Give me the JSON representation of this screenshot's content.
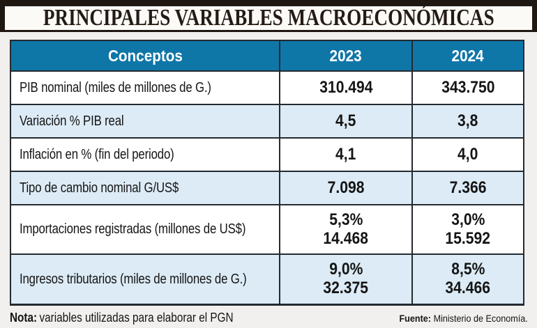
{
  "title": "PRINCIPALES VARIABLES MACROECONÓMICAS",
  "table": {
    "header": {
      "concepts": "Conceptos",
      "y2023": "2023",
      "y2024": "2024"
    },
    "rows": [
      {
        "label": "PIB nominal (miles de millones de G.)",
        "v2023": [
          "310.494"
        ],
        "v2024": [
          "343.750"
        ]
      },
      {
        "label": "Variación % PIB real",
        "v2023": [
          "4,5"
        ],
        "v2024": [
          "3,8"
        ]
      },
      {
        "label": "Inflación en % (fin del periodo)",
        "v2023": [
          "4,1"
        ],
        "v2024": [
          "4,0"
        ]
      },
      {
        "label": "Tipo de cambio nominal G/US$",
        "v2023": [
          "7.098"
        ],
        "v2024": [
          "7.366"
        ]
      },
      {
        "label": "Importaciones registradas (millones de US$)",
        "v2023": [
          "5,3%",
          "14.468"
        ],
        "v2024": [
          "3,0%",
          "15.592"
        ]
      },
      {
        "label": "Ingresos tributarios (miles de millones de G.)",
        "v2023": [
          "9,0%",
          "32.375"
        ],
        "v2024": [
          "8,5%",
          "34.466"
        ]
      }
    ]
  },
  "footer": {
    "note_label": "Nota:",
    "note_text": "variables utilizadas para elaborar el PGN",
    "source_label": "Fuente:",
    "source_text": "Ministerio de Economía."
  },
  "colors": {
    "header_bg": "#0f76a8",
    "row_alt_bg": "#dcebf5",
    "border": "#242a30",
    "title_color": "#241b15",
    "page_bg": "#f1f0ee"
  },
  "chart_data": {
    "type": "table",
    "title": "PRINCIPALES VARIABLES MACROECONÓMICAS",
    "columns": [
      "Conceptos",
      "2023",
      "2024"
    ],
    "rows": [
      [
        "PIB nominal (miles de millones de G.)",
        "310.494",
        "343.750"
      ],
      [
        "Variación % PIB real",
        "4,5",
        "3,8"
      ],
      [
        "Inflación en % (fin del periodo)",
        "4,1",
        "4,0"
      ],
      [
        "Tipo de cambio nominal G/US$",
        "7.098",
        "7.366"
      ],
      [
        "Importaciones registradas (millones de US$)",
        "5,3% 14.468",
        "3,0% 15.592"
      ],
      [
        "Ingresos tributarios (miles de millones de G.)",
        "9,0% 32.375",
        "8,5% 34.466"
      ]
    ],
    "note": "Nota: variables utilizadas para elaborar el PGN",
    "source": "Fuente: Ministerio de Economía."
  }
}
